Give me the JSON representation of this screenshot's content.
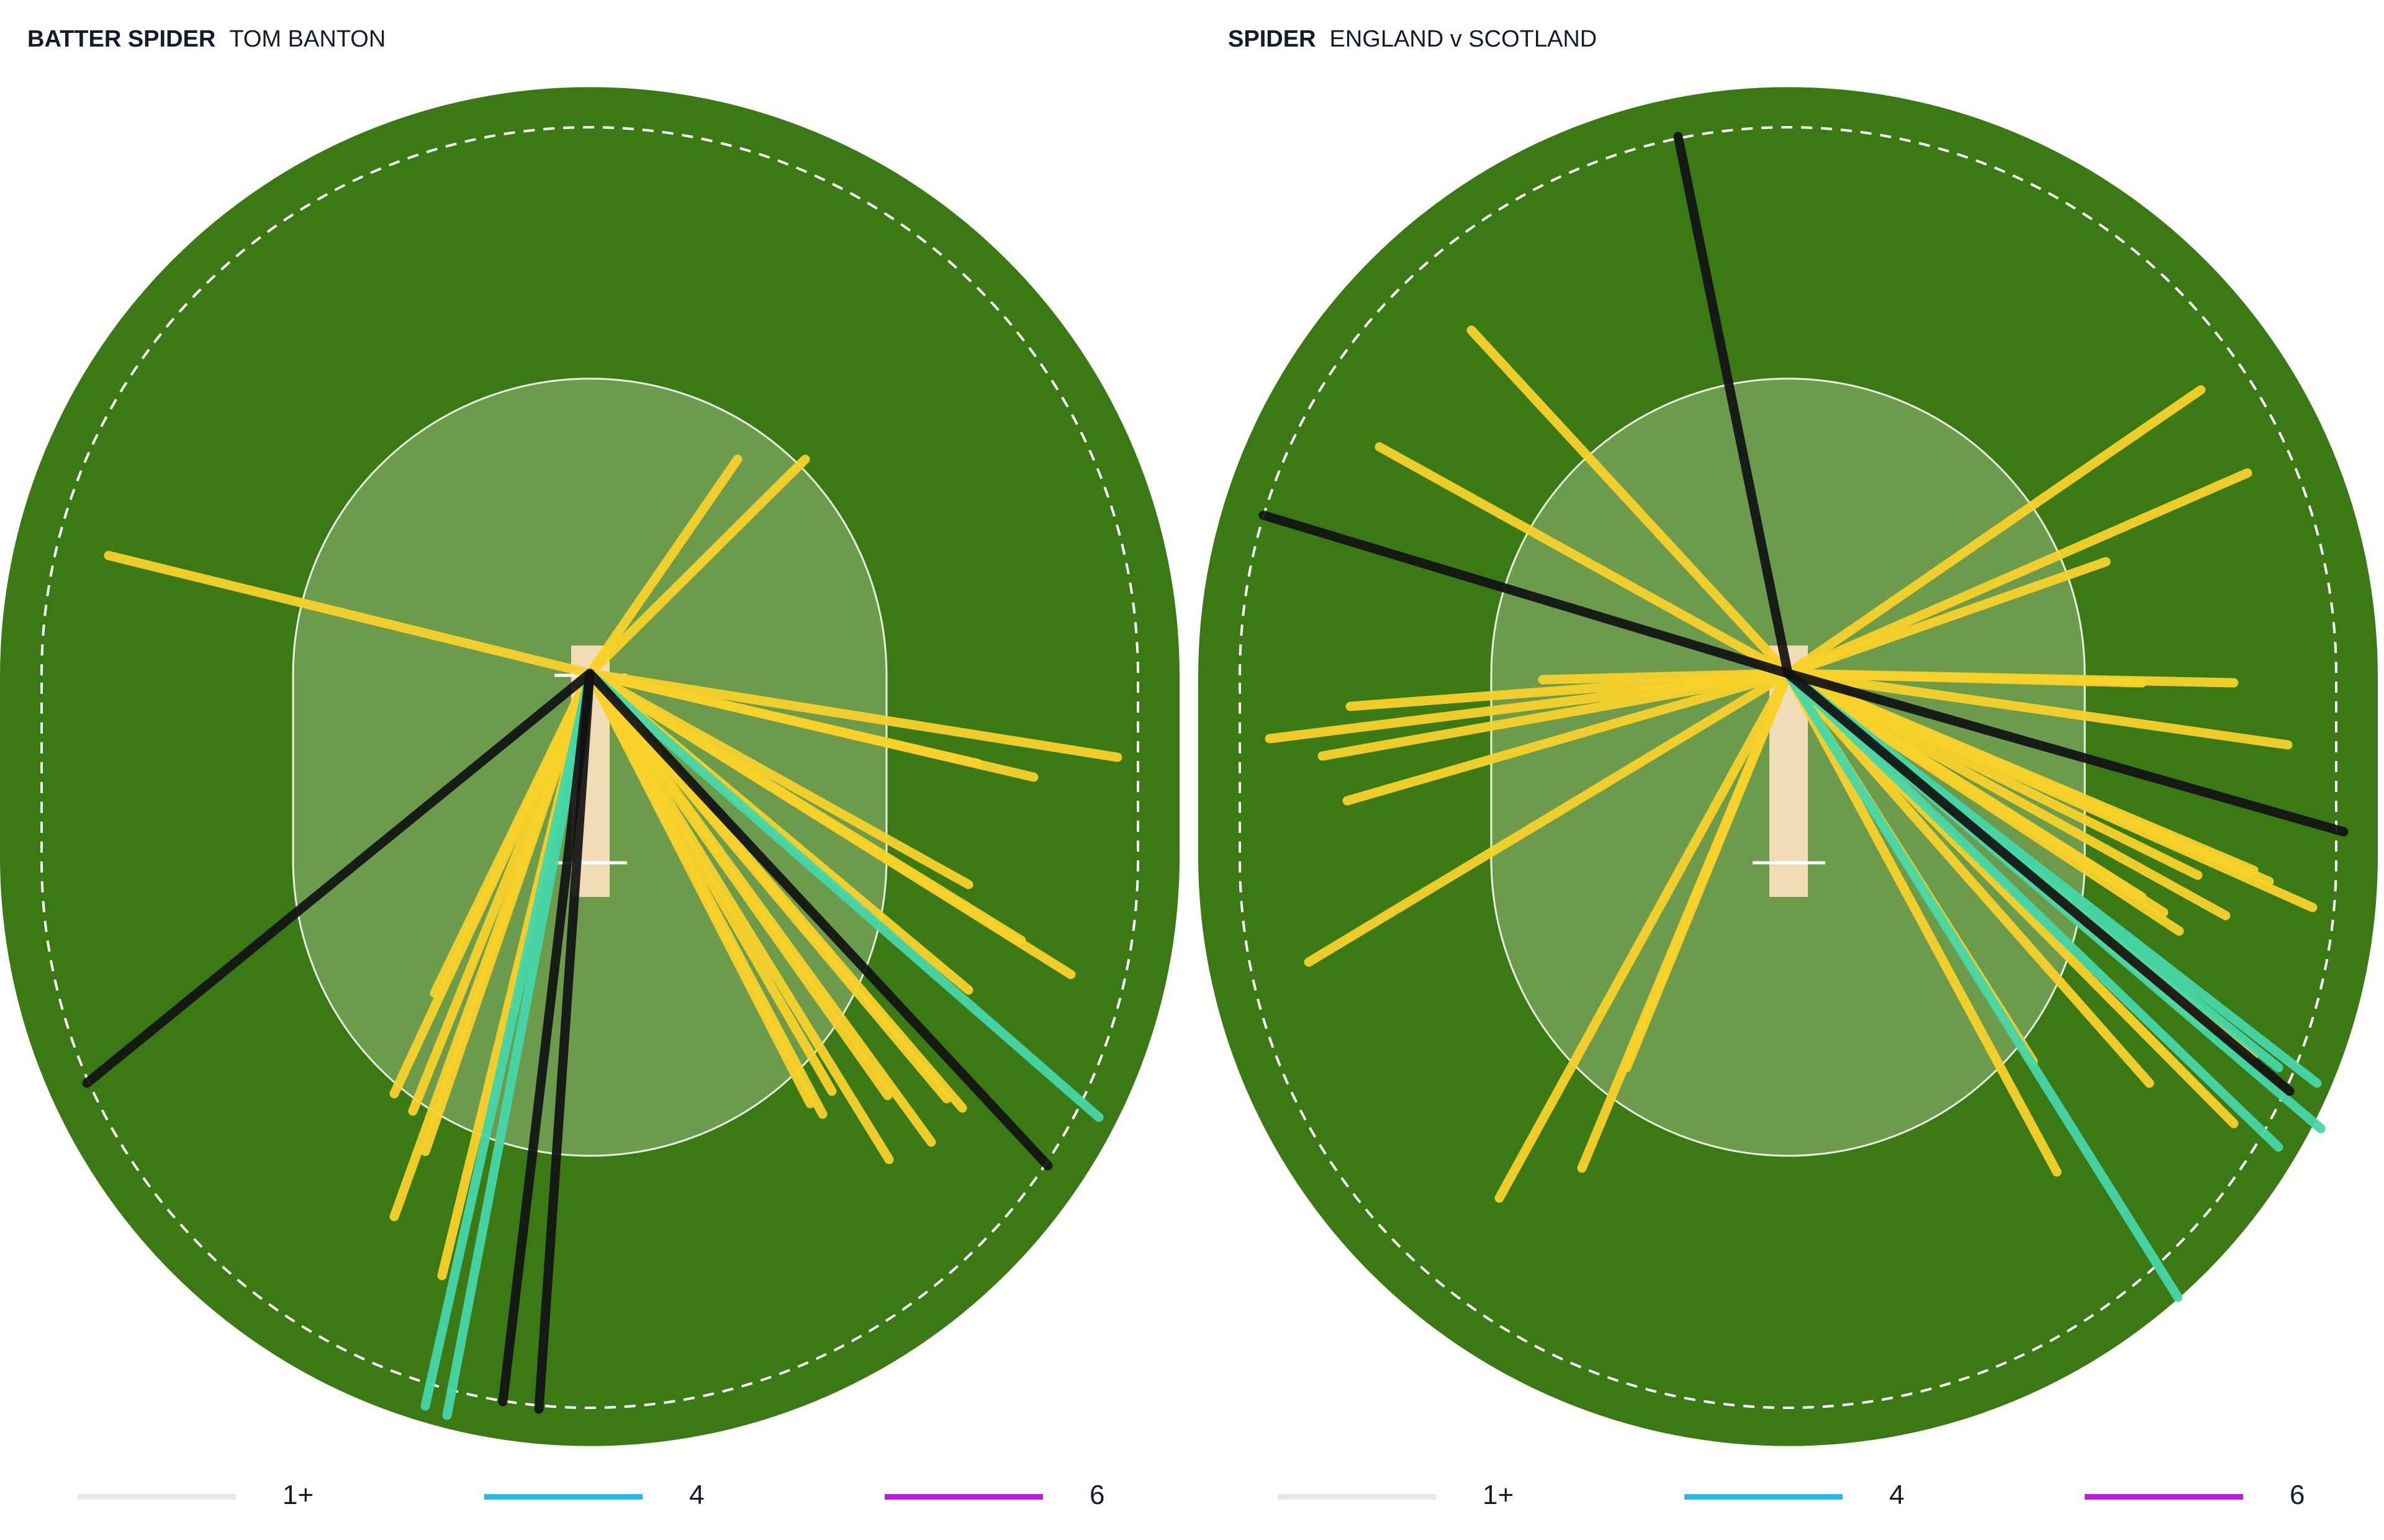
{
  "colors": {
    "outfield": "#3a7914",
    "infield": "#6b9b4b",
    "pitch": "#f0ddb8",
    "boundary_rope": "#ffffff",
    "shot_run": "#f8d12b",
    "shot_four": "#46d6a8",
    "shot_dot": "#111111",
    "legend_1plus": "#e8e8ec",
    "legend_4": "#1ebdf0",
    "legend_6": "#cc11ee"
  },
  "legend": [
    {
      "label": "1+",
      "color": "#e8e8ec"
    },
    {
      "label": "4",
      "color": "#1ebdf0"
    },
    {
      "label": "6",
      "color": "#cc11ee"
    }
  ],
  "chart_data": [
    {
      "type": "spider",
      "title_bold": "BATTER SPIDER",
      "title": "TOM BANTON",
      "origin": [
        950,
        1085
      ],
      "shots": [
        {
          "to": [
            175,
            895
          ],
          "kind": "run"
        },
        {
          "to": [
            1188,
            740
          ],
          "kind": "run"
        },
        {
          "to": [
            1297,
            740
          ],
          "kind": "run"
        },
        {
          "to": [
            1800,
            1220
          ],
          "kind": "run"
        },
        {
          "to": [
            1665,
            1252
          ],
          "kind": "run"
        },
        {
          "to": [
            1575,
            1230
          ],
          "kind": "run"
        },
        {
          "to": [
            1560,
            1425
          ],
          "kind": "run"
        },
        {
          "to": [
            1645,
            1515
          ],
          "kind": "run"
        },
        {
          "to": [
            1725,
            1570
          ],
          "kind": "run"
        },
        {
          "to": [
            1560,
            1595
          ],
          "kind": "run"
        },
        {
          "to": [
            1550,
            1785
          ],
          "kind": "run"
        },
        {
          "to": [
            1500,
            1840
          ],
          "kind": "run"
        },
        {
          "to": [
            1432,
            1868
          ],
          "kind": "run"
        },
        {
          "to": [
            1340,
            1758
          ],
          "kind": "run"
        },
        {
          "to": [
            1325,
            1795
          ],
          "kind": "run"
        },
        {
          "to": [
            1305,
            1778
          ],
          "kind": "run"
        },
        {
          "to": [
            1430,
            1765
          ],
          "kind": "run"
        },
        {
          "to": [
            1525,
            1770
          ],
          "kind": "run"
        },
        {
          "to": [
            635,
            1762
          ],
          "kind": "run"
        },
        {
          "to": [
            700,
            1600
          ],
          "kind": "run"
        },
        {
          "to": [
            685,
            1855
          ],
          "kind": "run"
        },
        {
          "to": [
            635,
            1960
          ],
          "kind": "run"
        },
        {
          "to": [
            712,
            2055
          ],
          "kind": "run"
        },
        {
          "to": [
            665,
            1790
          ],
          "kind": "run"
        },
        {
          "to": [
            1770,
            1800
          ],
          "kind": "four"
        },
        {
          "to": [
            685,
            2265
          ],
          "kind": "four"
        },
        {
          "to": [
            720,
            2280
          ],
          "kind": "four"
        },
        {
          "to": [
            140,
            1745
          ],
          "kind": "dot"
        },
        {
          "to": [
            1688,
            1878
          ],
          "kind": "dot"
        },
        {
          "to": [
            810,
            2258
          ],
          "kind": "dot"
        },
        {
          "to": [
            868,
            2270
          ],
          "kind": "dot"
        }
      ]
    },
    {
      "type": "spider",
      "title_bold": "SPIDER",
      "title": "ENGLAND v SCOTLAND",
      "origin": [
        950,
        1085
      ],
      "shots": [
        {
          "to": [
            440,
            532
          ],
          "kind": "run"
        },
        {
          "to": [
            292,
            720
          ],
          "kind": "run"
        },
        {
          "to": [
            1615,
            628
          ],
          "kind": "run"
        },
        {
          "to": [
            1690,
            762
          ],
          "kind": "run"
        },
        {
          "to": [
            1462,
            905
          ],
          "kind": "run"
        },
        {
          "to": [
            1668,
            1100
          ],
          "kind": "run"
        },
        {
          "to": [
            1755,
            1200
          ],
          "kind": "run"
        },
        {
          "to": [
            1520,
            1100
          ],
          "kind": "run"
        },
        {
          "to": [
            245,
            1138
          ],
          "kind": "run"
        },
        {
          "to": [
            115,
            1190
          ],
          "kind": "run"
        },
        {
          "to": [
            200,
            1218
          ],
          "kind": "run"
        },
        {
          "to": [
            240,
            1290
          ],
          "kind": "run"
        },
        {
          "to": [
            178,
            1550
          ],
          "kind": "run"
        },
        {
          "to": [
            555,
            1095
          ],
          "kind": "run"
        },
        {
          "to": [
            485,
            1930
          ],
          "kind": "run"
        },
        {
          "to": [
            618,
            1882
          ],
          "kind": "run"
        },
        {
          "to": [
            690,
            1720
          ],
          "kind": "run"
        },
        {
          "to": [
            1383,
            1888
          ],
          "kind": "run"
        },
        {
          "to": [
            1345,
            1710
          ],
          "kind": "run"
        },
        {
          "to": [
            1532,
            1745
          ],
          "kind": "run"
        },
        {
          "to": [
            1668,
            1810
          ],
          "kind": "run"
        },
        {
          "to": [
            1700,
            1700
          ],
          "kind": "run"
        },
        {
          "to": [
            1620,
            1652
          ],
          "kind": "run"
        },
        {
          "to": [
            1555,
            1470
          ],
          "kind": "run"
        },
        {
          "to": [
            1520,
            1445
          ],
          "kind": "run"
        },
        {
          "to": [
            1580,
            1500
          ],
          "kind": "run"
        },
        {
          "to": [
            1655,
            1475
          ],
          "kind": "run"
        },
        {
          "to": [
            1795,
            1462
          ],
          "kind": "run"
        },
        {
          "to": [
            1725,
            1420
          ],
          "kind": "run"
        },
        {
          "to": [
            1700,
            1402
          ],
          "kind": "run"
        },
        {
          "to": [
            1610,
            1410
          ],
          "kind": "run"
        },
        {
          "to": [
            1740,
            1848
          ],
          "kind": "four"
        },
        {
          "to": [
            1802,
            1745
          ],
          "kind": "four"
        },
        {
          "to": [
            1808,
            1818
          ],
          "kind": "four"
        },
        {
          "to": [
            1740,
            1720
          ],
          "kind": "four"
        },
        {
          "to": [
            1578,
            2090
          ],
          "kind": "four"
        },
        {
          "to": [
            773,
            220
          ],
          "kind": "dot"
        },
        {
          "to": [
            105,
            830
          ],
          "kind": "dot"
        },
        {
          "to": [
            1845,
            1340
          ],
          "kind": "dot"
        },
        {
          "to": [
            1758,
            1758
          ],
          "kind": "dot"
        }
      ]
    }
  ]
}
